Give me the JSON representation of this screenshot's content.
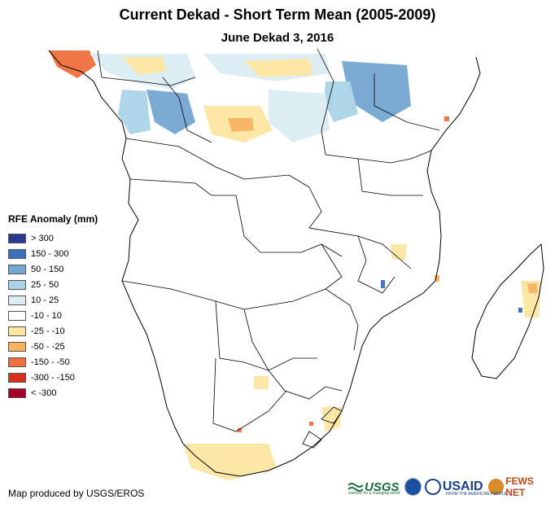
{
  "title": "Current Dekad - Short Term Mean (2005-2009)",
  "subtitle": "June Dekad 3, 2016",
  "legend": {
    "title": "RFE Anomaly (mm)",
    "items": [
      {
        "label": "> 300",
        "color": "#2b3990"
      },
      {
        "label": "150 - 300",
        "color": "#3d6fbf"
      },
      {
        "label": "50 - 150",
        "color": "#74a7d1"
      },
      {
        "label": "25 - 50",
        "color": "#abd3e8"
      },
      {
        "label": "10 - 25",
        "color": "#dcedf4"
      },
      {
        "label": "-10 - 10",
        "color": "#ffffff"
      },
      {
        "label": "-25 - -10",
        "color": "#fde6a3"
      },
      {
        "label": "-50 - -25",
        "color": "#f9b35e"
      },
      {
        "label": "-150 - -50",
        "color": "#f0703c"
      },
      {
        "label": "-300 - -150",
        "color": "#d7301f"
      },
      {
        "label": "< -300",
        "color": "#a50026"
      }
    ]
  },
  "credit": "Map produced by USGS/EROS",
  "logos": {
    "usgs": "USGS",
    "usgs_tagline": "science for a changing world",
    "usaid": "USAID",
    "usaid_tagline": "FROM THE AMERICAN PEOPLE",
    "fews": "FEWS NET"
  }
}
